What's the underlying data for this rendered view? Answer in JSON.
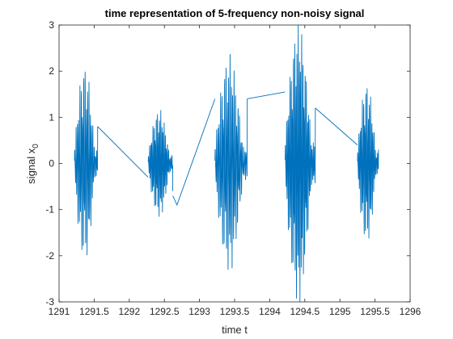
{
  "chart_data": {
    "type": "line",
    "title": "time representation of 5-frequency non-noisy signal",
    "xlabel": "time t",
    "ylabel_main": "signal x",
    "ylabel_subscript": "0",
    "xlim": [
      1291,
      1296
    ],
    "ylim": [
      -3,
      3
    ],
    "xticks": [
      1291,
      1291.5,
      1292,
      1292.5,
      1293,
      1293.5,
      1294,
      1294.5,
      1295,
      1295.5,
      1296
    ],
    "xtick_labels": [
      "1291",
      "1291.5",
      "1292",
      "1292.5",
      "1293",
      "1293.5",
      "1294",
      "1294.5",
      "1295",
      "1295.5",
      "1296"
    ],
    "yticks": [
      -3,
      -2,
      -1,
      0,
      1,
      2,
      3
    ],
    "ytick_labels": [
      "-3",
      "-2",
      "-1",
      "0",
      "1",
      "2",
      "3"
    ],
    "grid": false,
    "line_color": "#0072BD",
    "series": [
      {
        "name": "",
        "segments": [
          {
            "x_start": 1291.22,
            "x_end": 1291.55,
            "amplitude": 2.2,
            "y_end": 0.8,
            "cycles": 18
          },
          {
            "x_start": 1292.27,
            "x_end": 1292.62,
            "amplitude": 1.2,
            "y_end": -0.6,
            "cycles": 22
          },
          {
            "x_start": 1293.22,
            "x_end": 1293.68,
            "amplitude": 2.4,
            "y_end": 1.4,
            "cycles": 24
          },
          {
            "x_start": 1294.22,
            "x_end": 1294.65,
            "amplitude": 3.1,
            "y_end": 1.2,
            "cycles": 26
          },
          {
            "x_start": 1295.25,
            "x_end": 1295.55,
            "amplitude": 1.8,
            "y_end": 0.3,
            "cycles": 18
          }
        ],
        "connectors": [
          {
            "x": [
              1291.55,
              1292.27
            ],
            "y": [
              0.8,
              -0.3
            ]
          },
          {
            "x": [
              1292.62,
              1292.68,
              1293.22
            ],
            "y": [
              -0.7,
              -0.9,
              1.4
            ]
          },
          {
            "x": [
              1293.68,
              1294.22
            ],
            "y": [
              1.4,
              1.55
            ]
          },
          {
            "x": [
              1294.65,
              1295.25
            ],
            "y": [
              1.2,
              0.4
            ]
          }
        ]
      }
    ]
  }
}
